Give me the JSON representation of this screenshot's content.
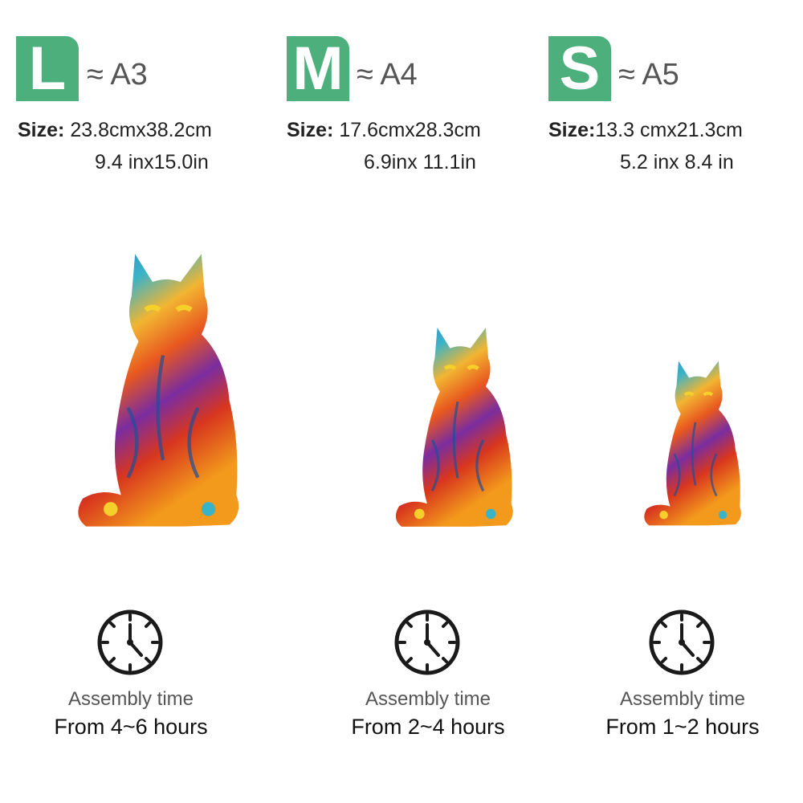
{
  "accent_color": "#4daf7c",
  "sizes": [
    {
      "letter": "L",
      "approx": "≈ A3",
      "size_label": "Size:",
      "metric": "23.8cmx38.2cm",
      "imperial": "9.4 inx15.0in",
      "assembly_label": "Assembly time",
      "assembly_time": "From 4~6 hours"
    },
    {
      "letter": "M",
      "approx": "≈ A4",
      "size_label": "Size:",
      "metric": "17.6cmx28.3cm",
      "imperial": "6.9inx 11.1in",
      "assembly_label": "Assembly time",
      "assembly_time": "From 2~4 hours"
    },
    {
      "letter": "S",
      "approx": "≈ A5",
      "size_label": "Size:",
      "metric": "13.3 cmx21.3cm",
      "imperial": "5.2 inx 8.4 in",
      "assembly_label": "Assembly time",
      "assembly_time": "From 1~2 hours"
    }
  ],
  "icons": {
    "clock": "clock-icon",
    "cat": "colorful-cat-puzzle-image"
  }
}
